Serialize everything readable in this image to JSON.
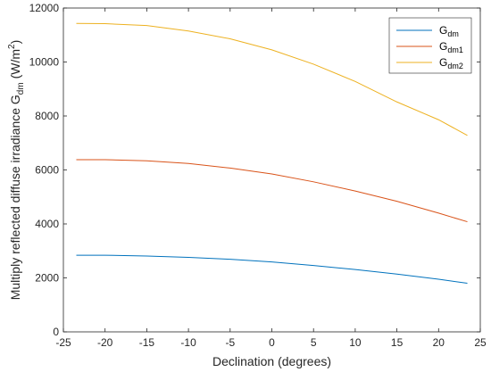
{
  "chart_data": {
    "type": "line",
    "title": "",
    "xlabel": "Declination (degrees)",
    "ylabel": {
      "prefix": "Multiply reflected diffuse irradiance G",
      "subscript": "dm",
      "unit_prefix": " (W/m",
      "unit_sup": "2",
      "unit_suffix": ")"
    },
    "xlim": [
      -25,
      25
    ],
    "ylim": [
      0,
      12000
    ],
    "xticks": [
      -25,
      -20,
      -15,
      -10,
      -5,
      0,
      5,
      10,
      15,
      20,
      25
    ],
    "yticks": [
      0,
      2000,
      4000,
      6000,
      8000,
      10000,
      12000
    ],
    "grid": false,
    "legend_position": "top-right",
    "series": [
      {
        "name": "G",
        "name_sub": "dm",
        "color": "#0072BD",
        "x": [
          -23.45,
          -20,
          -15,
          -10,
          -5,
          0,
          5,
          10,
          15,
          20,
          23.45
        ],
        "y": [
          2840,
          2840,
          2810,
          2760,
          2690,
          2590,
          2460,
          2310,
          2140,
          1950,
          1800
        ]
      },
      {
        "name": "G",
        "name_sub": "dm1",
        "color": "#D95319",
        "x": [
          -23.45,
          -20,
          -15,
          -10,
          -5,
          0,
          5,
          10,
          15,
          20,
          23.45
        ],
        "y": [
          6380,
          6380,
          6340,
          6240,
          6070,
          5850,
          5560,
          5220,
          4840,
          4400,
          4080
        ]
      },
      {
        "name": "G",
        "name_sub": "dm2",
        "color": "#EDB120",
        "x": [
          -23.45,
          -20,
          -15,
          -10,
          -5,
          0,
          5,
          10,
          15,
          20,
          23.45
        ],
        "y": [
          11430,
          11420,
          11350,
          11150,
          10860,
          10450,
          9920,
          9280,
          8520,
          7860,
          7280
        ]
      }
    ]
  }
}
